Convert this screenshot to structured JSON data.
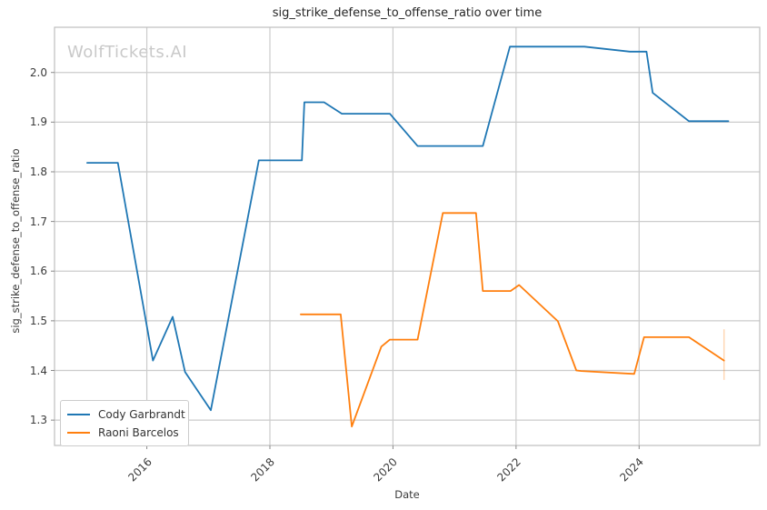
{
  "watermark": "WolfTickets.AI",
  "chart_data": {
    "type": "line",
    "title": "sig_strike_defense_to_offense_ratio over time",
    "xlabel": "Date",
    "ylabel": "sig_strike_defense_to_offense_ratio",
    "xlim": [
      2014.5,
      2025.96
    ],
    "ylim": [
      1.249,
      2.091
    ],
    "x_ticks": [
      2016,
      2018,
      2020,
      2022,
      2024
    ],
    "y_ticks": [
      1.3,
      1.4,
      1.5,
      1.6,
      1.7,
      1.8,
      1.9,
      2.0
    ],
    "grid": true,
    "grid_color": "#cccccc",
    "spine_color": "#bdbdbd",
    "tick_color": "#8a8a8a",
    "legend_position": "lower left",
    "series": [
      {
        "name": "Cody Garbrandt",
        "color": "#1f77b4",
        "points": [
          [
            2015.03,
            1.818
          ],
          [
            2015.53,
            1.818
          ],
          [
            2016.1,
            1.42
          ],
          [
            2016.42,
            1.508
          ],
          [
            2016.62,
            1.397
          ],
          [
            2017.04,
            1.32
          ],
          [
            2017.82,
            1.823
          ],
          [
            2018.52,
            1.823
          ],
          [
            2018.56,
            1.94
          ],
          [
            2018.88,
            1.94
          ],
          [
            2019.17,
            1.917
          ],
          [
            2019.95,
            1.917
          ],
          [
            2020.4,
            1.852
          ],
          [
            2021.46,
            1.852
          ],
          [
            2021.9,
            2.052
          ],
          [
            2023.11,
            2.052
          ],
          [
            2023.85,
            2.042
          ],
          [
            2024.12,
            2.042
          ],
          [
            2024.22,
            1.959
          ],
          [
            2024.81,
            1.902
          ],
          [
            2025.45,
            1.902
          ]
        ]
      },
      {
        "name": "Raoni Barcelos",
        "color": "#ff7f0e",
        "points": [
          [
            2018.5,
            1.513
          ],
          [
            2019.15,
            1.513
          ],
          [
            2019.33,
            1.287
          ],
          [
            2019.81,
            1.448
          ],
          [
            2019.95,
            1.462
          ],
          [
            2020.4,
            1.462
          ],
          [
            2020.81,
            1.717
          ],
          [
            2021.35,
            1.717
          ],
          [
            2021.46,
            1.56
          ],
          [
            2021.91,
            1.56
          ],
          [
            2022.05,
            1.572
          ],
          [
            2022.68,
            1.499
          ],
          [
            2022.98,
            1.4
          ],
          [
            2023.06,
            1.399
          ],
          [
            2023.92,
            1.393
          ],
          [
            2024.08,
            1.467
          ],
          [
            2024.81,
            1.467
          ],
          [
            2025.38,
            1.42
          ]
        ],
        "final_error_bar": {
          "x": 2025.38,
          "y_low": 1.381,
          "y_high": 1.483
        }
      }
    ]
  }
}
